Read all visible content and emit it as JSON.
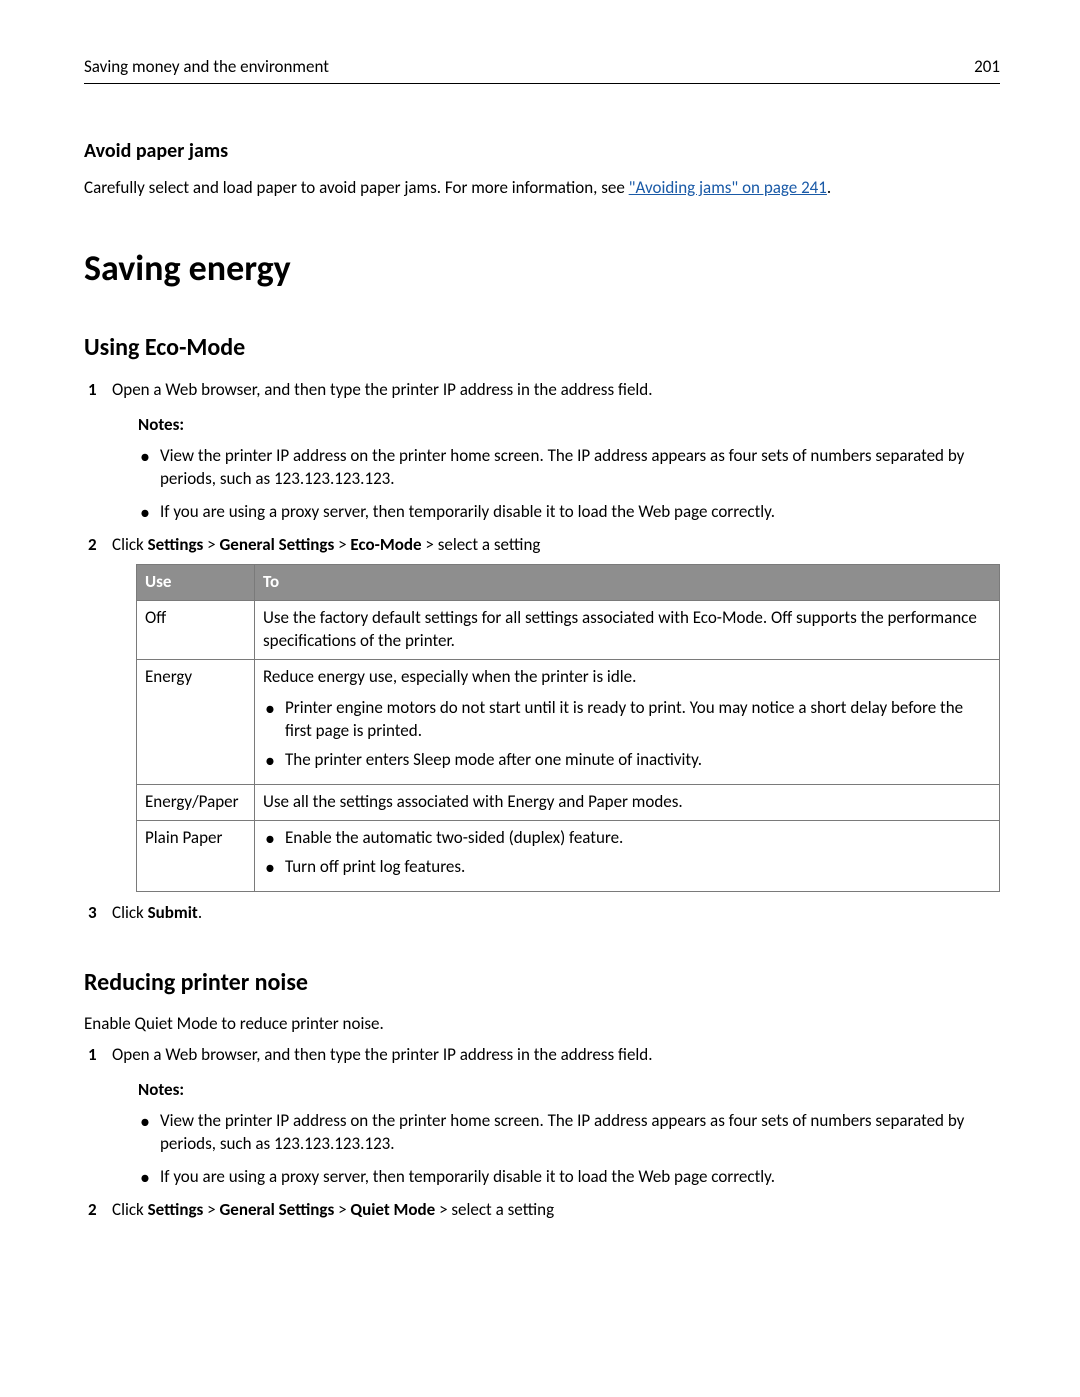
{
  "header": {
    "title": "Saving money and the environment",
    "page_number": "201"
  },
  "avoid": {
    "heading": "Avoid paper jams",
    "text_prefix": "Carefully select and load paper to avoid paper jams. For more information, see ",
    "link_text": "\"Avoiding jams\" on page 241",
    "text_suffix": "."
  },
  "h1": "Saving energy",
  "eco": {
    "heading": "Using Eco-Mode",
    "step1": "Open a Web browser, and then type the printer IP address in the address field.",
    "notes_label": "Notes:",
    "note1": "View the printer IP address on the printer home screen. The IP address appears as four sets of numbers separated by periods, such as 123.123.123.123.",
    "note2": "If you are using a proxy server, then temporarily disable it to load the Web page correctly.",
    "step2_prefix": "Click ",
    "step2_b1": "Settings",
    "step2_sep": " > ",
    "step2_b2": "General Settings",
    "step2_b3": "Eco-Mode",
    "step2_suffix": " > select a setting",
    "table": {
      "col1": "Use",
      "col2": "To",
      "rows": [
        {
          "use": "Off",
          "to_text": "Use the factory default settings for all settings associated with Eco-Mode. Off supports the performance specifications of the printer."
        },
        {
          "use": "Energy",
          "to_lead": "Reduce energy use, especially when the printer is idle.",
          "to_bullets": [
            "Printer engine motors do not start until it is ready to print. You may notice a short delay before the first page is printed.",
            "The printer enters Sleep mode after one minute of inactivity."
          ]
        },
        {
          "use": "Energy/Paper",
          "to_text": "Use all the settings associated with Energy and Paper modes."
        },
        {
          "use": "Plain Paper",
          "to_bullets": [
            "Enable the automatic two-sided (duplex) feature.",
            "Turn off print log features."
          ]
        }
      ]
    },
    "step3_prefix": "Click ",
    "step3_bold": "Submit",
    "step3_suffix": "."
  },
  "noise": {
    "heading": "Reducing printer noise",
    "intro": "Enable Quiet Mode to reduce printer noise.",
    "step1": "Open a Web browser, and then type the printer IP address in the address field.",
    "notes_label": "Notes:",
    "note1": "View the printer IP address on the printer home screen. The IP address appears as four sets of numbers separated by periods, such as 123.123.123.123.",
    "note2": "If you are using a proxy server, then temporarily disable it to load the Web page correctly.",
    "step2_prefix": "Click ",
    "step2_b1": "Settings",
    "step2_sep": " > ",
    "step2_b2": "General Settings",
    "step2_b3": "Quiet Mode",
    "step2_suffix": " > select a setting"
  }
}
